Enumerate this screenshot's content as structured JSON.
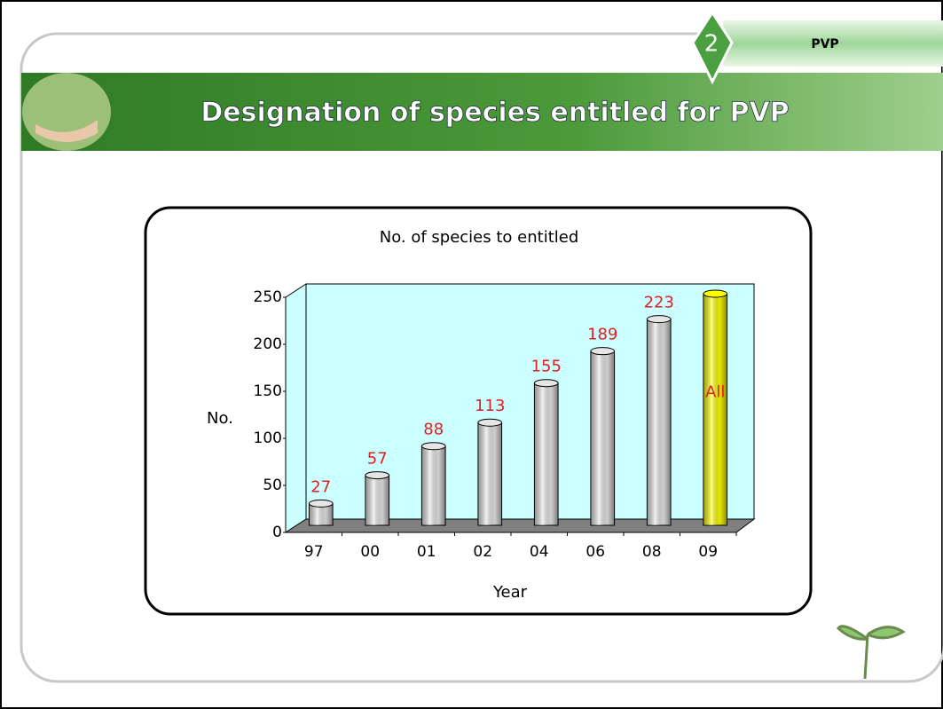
{
  "section_number": "2",
  "section_name": "PVP",
  "header": {
    "title": "Designation of species entitled for PVP"
  },
  "chart_data": {
    "type": "bar",
    "title": "No. of species to entitled",
    "xlabel": "Year",
    "ylabel": "No.",
    "categories": [
      "97",
      "00",
      "01",
      "02",
      "04",
      "06",
      "08",
      "09"
    ],
    "values": [
      27,
      57,
      88,
      113,
      155,
      189,
      223,
      250
    ],
    "value_labels": [
      "27",
      "57",
      "88",
      "113",
      "155",
      "189",
      "223",
      "All"
    ],
    "colors": [
      "#e6e6e6",
      "#e6e6e6",
      "#e6e6e6",
      "#e6e6e6",
      "#e6e6e6",
      "#e6e6e6",
      "#e6e6e6",
      "#ffff00"
    ],
    "label_color": "#e02020",
    "ylim": [
      0,
      250
    ],
    "yticks": [
      0,
      50,
      100,
      150,
      200,
      250
    ]
  }
}
